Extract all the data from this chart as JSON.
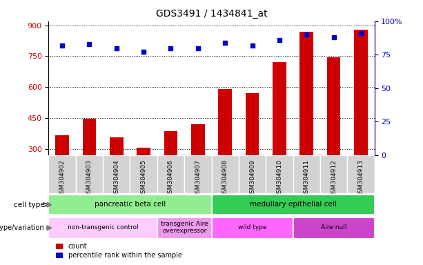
{
  "title": "GDS3491 / 1434841_at",
  "samples": [
    "GSM304902",
    "GSM304903",
    "GSM304904",
    "GSM304905",
    "GSM304906",
    "GSM304907",
    "GSM304908",
    "GSM304909",
    "GSM304910",
    "GSM304911",
    "GSM304912",
    "GSM304913"
  ],
  "counts": [
    365,
    445,
    355,
    305,
    385,
    420,
    590,
    570,
    720,
    870,
    745,
    880
  ],
  "percentiles": [
    82,
    83,
    80,
    77,
    80,
    80,
    84,
    82,
    86,
    90,
    88,
    91
  ],
  "bar_color": "#cc0000",
  "dot_color": "#0000cc",
  "ylim_left": [
    270,
    920
  ],
  "yticks_left": [
    300,
    450,
    600,
    750,
    900
  ],
  "ylim_right": [
    0,
    100
  ],
  "yticks_right": [
    0,
    25,
    50,
    75,
    100
  ],
  "cell_types": [
    {
      "label": "pancreatic beta cell",
      "span": [
        0,
        6
      ],
      "color": "#90EE90"
    },
    {
      "label": "medullary epithelial cell",
      "span": [
        6,
        12
      ],
      "color": "#33cc55"
    }
  ],
  "genotype_groups": [
    {
      "label": "non-transgenic control",
      "span": [
        0,
        4
      ],
      "color": "#ffccff"
    },
    {
      "label": "transgenic Aire\noverexpressor",
      "span": [
        4,
        6
      ],
      "color": "#ee99ee"
    },
    {
      "label": "wild type",
      "span": [
        6,
        9
      ],
      "color": "#ff66ff"
    },
    {
      "label": "Aire null",
      "span": [
        9,
        12
      ],
      "color": "#cc44cc"
    }
  ],
  "legend_count_color": "#cc0000",
  "legend_dot_color": "#0000cc",
  "background_color": "#ffffff",
  "tick_bg_color": "#d3d3d3",
  "left_axis_color": "#cc0000",
  "right_axis_color": "#0000cc"
}
